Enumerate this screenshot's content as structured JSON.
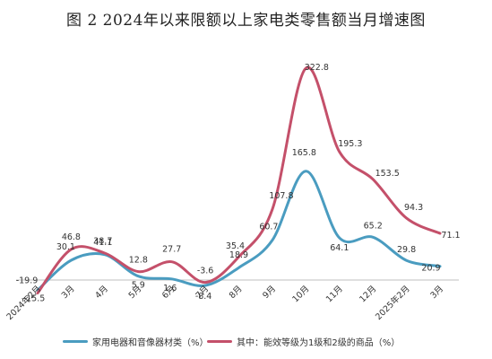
{
  "chart_data": {
    "type": "line",
    "title": "图 2 2024年以来限额以上家电类零售额当月增速图",
    "x": [
      "2024年2月",
      "3月",
      "4月",
      "5月",
      "6月",
      "7月",
      "8月",
      "9月",
      "10月",
      "11月",
      "12月",
      "2025年2月",
      "3月"
    ],
    "series": [
      {
        "name": "家用电器和音像器材类（%）",
        "color": "#4a9cc0",
        "values": [
          -15.5,
          30.1,
          38.7,
          5.9,
          1.6,
          -8.4,
          18.9,
          60.7,
          165.8,
          64.1,
          65.2,
          29.8,
          20.9
        ],
        "labels": [
          "-15.5",
          "30.1",
          "38.7",
          "5.9",
          "1.6",
          "-8.4",
          "18.9",
          "60.7",
          "165.8",
          "64.1",
          "65.2",
          "29.8",
          "20.9"
        ]
      },
      {
        "name": "其中：能效等级为1级和2级的商品（%）",
        "color": "#c4506a",
        "values": [
          -19.9,
          46.8,
          41.1,
          12.8,
          27.7,
          -3.6,
          35.4,
          107.8,
          322.8,
          195.3,
          153.5,
          94.3,
          71.1
        ],
        "labels": [
          "-19.9",
          "46.8",
          "41.1",
          "12.8",
          "27.7",
          "-3.6",
          "35.4",
          "107.8",
          "322.8",
          "195.3",
          "153.5",
          "94.3",
          "71.1"
        ]
      }
    ],
    "ylim": [
      -40,
      350
    ],
    "grid": false,
    "legend_position": "bottom"
  }
}
